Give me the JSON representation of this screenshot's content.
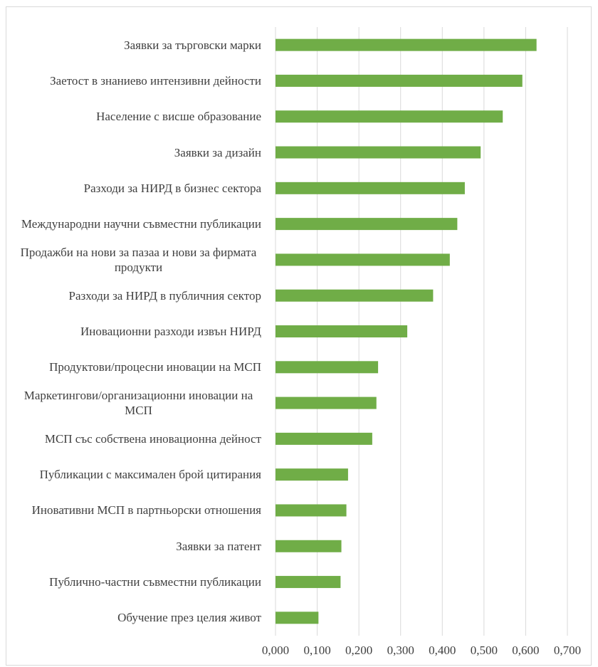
{
  "chart_data": {
    "type": "bar",
    "orientation": "horizontal",
    "categories": [
      "Заявки за търговски марки",
      "Заетост в знаниево интензивни дейности",
      "Население с висше образование",
      "Заявки за дизайн",
      "Разходи за НИРД в бизнес сектора",
      "Международни научни съвместни публикации",
      "Продажби на нови за пазаа и нови за фирмата продукти",
      "Разходи за НИРД в публичния сектор",
      "Иновационни разходи извън НИРД",
      "Продуктови/процесни иновации на МСП",
      "Маркетингови/организационни иновации на МСП",
      "МСП със собствена иновационна дейност",
      "Публикации с максимален брой цитирания",
      "Иновативни МСП в партньорски отношения",
      "Заявки за патент",
      "Публично-частни съвместни публикации",
      "Обучение през целия живот"
    ],
    "values": [
      0.626,
      0.592,
      0.545,
      0.492,
      0.454,
      0.436,
      0.418,
      0.378,
      0.316,
      0.246,
      0.242,
      0.232,
      0.174,
      0.17,
      0.158,
      0.156,
      0.103
    ],
    "color": "#70ad47",
    "xlim": [
      0,
      0.7
    ],
    "xticks": [
      {
        "value": 0,
        "label": "0,000"
      },
      {
        "value": 0.1,
        "label": "0,100"
      },
      {
        "value": 0.2,
        "label": "0,200"
      },
      {
        "value": 0.3,
        "label": "0,300"
      },
      {
        "value": 0.4,
        "label": "0,400"
      },
      {
        "value": 0.5,
        "label": "0,500"
      },
      {
        "value": 0.6,
        "label": "0,600"
      },
      {
        "value": 0.7,
        "label": "0,700"
      }
    ],
    "grid": true
  }
}
